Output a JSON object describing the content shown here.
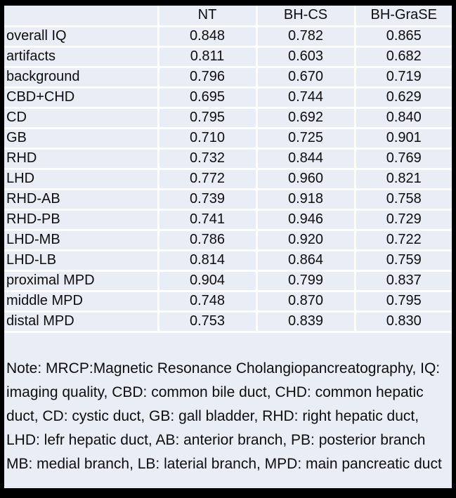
{
  "table": {
    "columns": [
      "",
      "NT",
      "BH-CS",
      "BH-GraSE"
    ],
    "rows": [
      {
        "label": "overall IQ",
        "values": [
          "0.848",
          "0.782",
          "0.865"
        ]
      },
      {
        "label": "artifacts",
        "values": [
          "0.811",
          "0.603",
          "0.682"
        ]
      },
      {
        "label": "background",
        "values": [
          "0.796",
          "0.670",
          "0.719"
        ]
      },
      {
        "label": "CBD+CHD",
        "values": [
          "0.695",
          "0.744",
          "0.629"
        ]
      },
      {
        "label": "CD",
        "values": [
          "0.795",
          "0.692",
          "0.840"
        ]
      },
      {
        "label": "GB",
        "values": [
          "0.710",
          "0.725",
          "0.901"
        ]
      },
      {
        "label": "RHD",
        "values": [
          "0.732",
          "0.844",
          "0.769"
        ]
      },
      {
        "label": "LHD",
        "values": [
          "0.772",
          "0.960",
          "0.821"
        ]
      },
      {
        "label": "RHD-AB",
        "values": [
          "0.739",
          "0.918",
          "0.758"
        ]
      },
      {
        "label": "RHD-PB",
        "values": [
          "0.741",
          "0.946",
          "0.729"
        ]
      },
      {
        "label": "LHD-MB",
        "values": [
          "0.786",
          "0.920",
          "0.722"
        ]
      },
      {
        "label": "LHD-LB",
        "values": [
          "0.814",
          "0.864",
          "0.759"
        ]
      },
      {
        "label": "proximal MPD",
        "values": [
          "0.904",
          "0.799",
          "0.837"
        ]
      },
      {
        "label": "middle MPD",
        "values": [
          "0.748",
          "0.870",
          "0.795"
        ]
      },
      {
        "label": "distal MPD",
        "values": [
          "0.753",
          "0.839",
          "0.830"
        ]
      }
    ]
  },
  "note": "Note: MRCP:Magnetic Resonance Cholangiopancreatography, IQ: imaging quality, CBD: common bile duct, CHD: common hepatic duct, CD: cystic duct, GB: gall bladder, RHD: right hepatic duct, LHD: lefr hepatic duct, AB: anterior branch, PB: posterior branch MB: medial branch, LB: laterial branch, MPD: main pancreatic duct",
  "colors": {
    "frame": "#000000",
    "cell_background": "#e9edf6",
    "gridline": "#ffffff",
    "text": "#0d0d0d"
  },
  "chart_data": {
    "type": "table",
    "title": "",
    "columns": [
      "",
      "NT",
      "BH-CS",
      "BH-GraSE"
    ],
    "categories": [
      "overall IQ",
      "artifacts",
      "background",
      "CBD+CHD",
      "CD",
      "GB",
      "RHD",
      "LHD",
      "RHD-AB",
      "RHD-PB",
      "LHD-MB",
      "LHD-LB",
      "proximal MPD",
      "middle MPD",
      "distal MPD"
    ],
    "series": [
      {
        "name": "NT",
        "values": [
          0.848,
          0.811,
          0.796,
          0.695,
          0.795,
          0.71,
          0.732,
          0.772,
          0.739,
          0.741,
          0.786,
          0.814,
          0.904,
          0.748,
          0.753
        ]
      },
      {
        "name": "BH-CS",
        "values": [
          0.782,
          0.603,
          0.67,
          0.744,
          0.692,
          0.725,
          0.844,
          0.96,
          0.918,
          0.946,
          0.92,
          0.864,
          0.799,
          0.87,
          0.839
        ]
      },
      {
        "name": "BH-GraSE",
        "values": [
          0.865,
          0.682,
          0.719,
          0.629,
          0.84,
          0.901,
          0.769,
          0.821,
          0.758,
          0.729,
          0.722,
          0.759,
          0.837,
          0.795,
          0.83
        ]
      }
    ]
  }
}
